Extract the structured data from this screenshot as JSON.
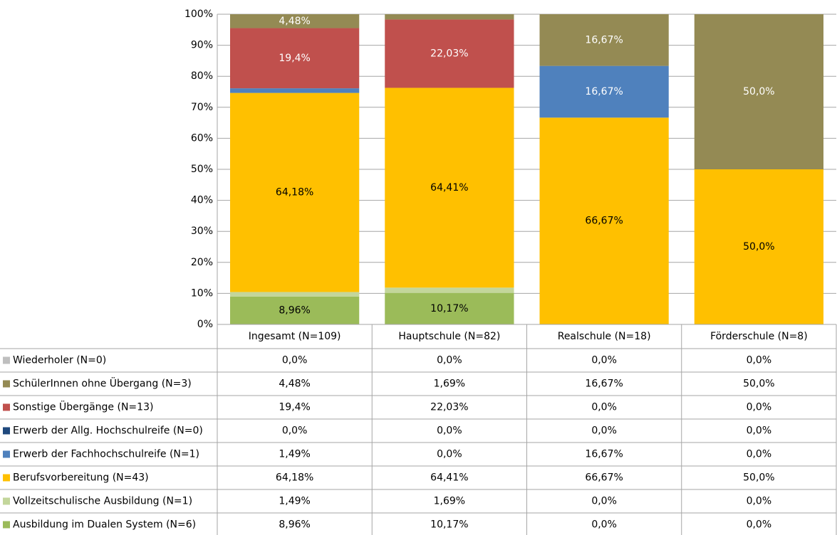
{
  "chart_data": {
    "type": "stacked_bar",
    "categories": [
      "Ingesamt (N=109)",
      "Hauptschule (N=82)",
      "Realschule (N=18)",
      "Förderschule (N=8)"
    ],
    "series": [
      {
        "name": "Wiederholer (N=0)",
        "color": "#bfbfbf",
        "values": [
          0,
          0,
          0,
          0
        ],
        "value_labels": [
          "0,0%",
          "0,0%",
          "0,0%",
          "0,0%"
        ]
      },
      {
        "name": "SchülerInnen ohne Übergang (N=3)",
        "color": "#948a54",
        "values": [
          4.48,
          1.69,
          16.67,
          50
        ],
        "value_labels": [
          "4,48%",
          "1,69%",
          "16,67%",
          "50,0%"
        ]
      },
      {
        "name": "Sonstige Übergänge (N=13)",
        "color": "#c0504d",
        "values": [
          19.4,
          22.03,
          0,
          0
        ],
        "value_labels": [
          "19,4%",
          "22,03%",
          "0,0%",
          "0,0%"
        ]
      },
      {
        "name": "Erwerb der Allg. Hochschulreife (N=0)",
        "color": "#1f497d",
        "values": [
          0,
          0,
          0,
          0
        ],
        "value_labels": [
          "0,0%",
          "0,0%",
          "0,0%",
          "0,0%"
        ]
      },
      {
        "name": "Erwerb der Fachhochschulreife (N=1)",
        "color": "#4f81bd",
        "values": [
          1.49,
          0,
          16.67,
          0
        ],
        "value_labels": [
          "1,49%",
          "0,0%",
          "16,67%",
          "0,0%"
        ]
      },
      {
        "name": "Berufsvorbereitung (N=43)",
        "color": "#ffc000",
        "values": [
          64.18,
          64.41,
          66.67,
          50
        ],
        "value_labels": [
          "64,18%",
          "64,41%",
          "66,67%",
          "50,0%"
        ]
      },
      {
        "name": "Vollzeitschulische Ausbildung (N=1)",
        "color": "#c3d69b",
        "values": [
          1.49,
          1.69,
          0,
          0
        ],
        "value_labels": [
          "1,49%",
          "1,69%",
          "0,0%",
          "0,0%"
        ]
      },
      {
        "name": "Ausbildung im Dualen System (N=6)",
        "color": "#9bbb59",
        "values": [
          8.96,
          10.17,
          0,
          0
        ],
        "value_labels": [
          "8,96%",
          "10,17%",
          "0,0%",
          "0,0%"
        ]
      }
    ],
    "ylim": [
      0,
      100
    ],
    "yticks": [
      {
        "value": 0,
        "label": "0%"
      },
      {
        "value": 10,
        "label": "10%"
      },
      {
        "value": 20,
        "label": "20%"
      },
      {
        "value": 30,
        "label": "30%"
      },
      {
        "value": 40,
        "label": "40%"
      },
      {
        "value": 50,
        "label": "50%"
      },
      {
        "value": 60,
        "label": "60%"
      },
      {
        "value": 70,
        "label": "70%"
      },
      {
        "value": 80,
        "label": "80%"
      },
      {
        "value": 90,
        "label": "90%"
      },
      {
        "value": 100,
        "label": "100%"
      }
    ],
    "grid": true
  }
}
